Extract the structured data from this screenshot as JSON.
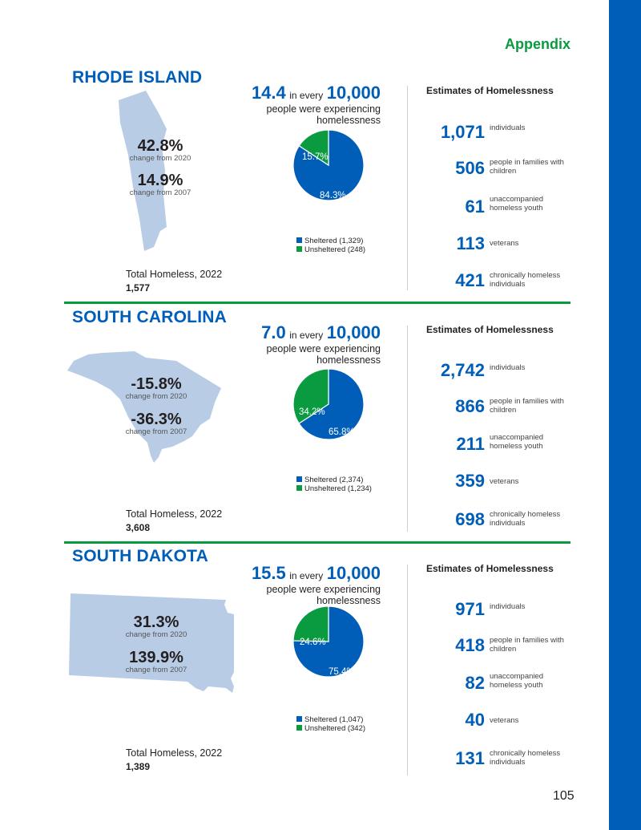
{
  "header": {
    "section_label": "Appendix"
  },
  "page_number": "105",
  "colors": {
    "brand_blue": "#005eb8",
    "brand_green": "#0a9a3f",
    "map_fill": "#b9cce6",
    "sheltered": "#005eb8",
    "unsheltered": "#0a9a3f"
  },
  "states": [
    {
      "name": "RHODE ISLAND",
      "rate": {
        "value": "14.4",
        "in_every": "in every",
        "per": "10,000",
        "line1": "people were experiencing",
        "line2": "homelessness"
      },
      "change_2020": {
        "value": "42.8%",
        "label": "change from 2020"
      },
      "change_2007": {
        "value": "14.9%",
        "label": "change from 2007"
      },
      "total": {
        "label": "Total Homeless, 2022",
        "value": "1,577"
      },
      "chart_data": {
        "type": "pie",
        "title": "",
        "slices": [
          {
            "name": "Sheltered",
            "value": 1329,
            "percent": 84.3,
            "label": "84.3%",
            "legend": "Sheltered (1,329)"
          },
          {
            "name": "Unsheltered",
            "value": 248,
            "percent": 15.7,
            "label": "15.7%",
            "legend": "Unsheltered (248)"
          }
        ]
      },
      "estimates": {
        "title": "Estimates of Homelessness",
        "rows": [
          {
            "value": "1,071",
            "label": "individuals"
          },
          {
            "value": "506",
            "label": "people in families with children"
          },
          {
            "value": "61",
            "label": "unaccompanied homeless youth"
          },
          {
            "value": "113",
            "label": "veterans"
          },
          {
            "value": "421",
            "label": "chronically homeless individuals"
          }
        ]
      }
    },
    {
      "name": "SOUTH CAROLINA",
      "rate": {
        "value": "7.0",
        "in_every": "in every",
        "per": "10,000",
        "line1": "people were experiencing",
        "line2": "homelessness"
      },
      "change_2020": {
        "value": "-15.8%",
        "label": "change from 2020"
      },
      "change_2007": {
        "value": "-36.3%",
        "label": "change from 2007"
      },
      "total": {
        "label": "Total Homeless, 2022",
        "value": "3,608"
      },
      "chart_data": {
        "type": "pie",
        "title": "",
        "slices": [
          {
            "name": "Sheltered",
            "value": 2374,
            "percent": 65.8,
            "label": "65.8%",
            "legend": "Sheltered (2,374)"
          },
          {
            "name": "Unsheltered",
            "value": 1234,
            "percent": 34.2,
            "label": "34.2%",
            "legend": "Unsheltered (1,234)"
          }
        ]
      },
      "estimates": {
        "title": "Estimates of Homelessness",
        "rows": [
          {
            "value": "2,742",
            "label": "individuals"
          },
          {
            "value": "866",
            "label": "people in families with children"
          },
          {
            "value": "211",
            "label": "unaccompanied homeless youth"
          },
          {
            "value": "359",
            "label": "veterans"
          },
          {
            "value": "698",
            "label": "chronically homeless individuals"
          }
        ]
      }
    },
    {
      "name": "SOUTH DAKOTA",
      "rate": {
        "value": "15.5",
        "in_every": "in every",
        "per": "10,000",
        "line1": "people were experiencing",
        "line2": "homelessness"
      },
      "change_2020": {
        "value": "31.3%",
        "label": "change from 2020"
      },
      "change_2007": {
        "value": "139.9%",
        "label": "change from 2007"
      },
      "total": {
        "label": "Total Homeless, 2022",
        "value": "1,389"
      },
      "chart_data": {
        "type": "pie",
        "title": "",
        "slices": [
          {
            "name": "Sheltered",
            "value": 1047,
            "percent": 75.4,
            "label": "75.4%",
            "legend": "Sheltered (1,047)"
          },
          {
            "name": "Unsheltered",
            "value": 342,
            "percent": 24.6,
            "label": "24.6%",
            "legend": "Unsheltered (342)"
          }
        ]
      },
      "estimates": {
        "title": "Estimates of Homelessness",
        "rows": [
          {
            "value": "971",
            "label": "individuals"
          },
          {
            "value": "418",
            "label": "people in families with children"
          },
          {
            "value": "82",
            "label": "unaccompanied homeless youth"
          },
          {
            "value": "40",
            "label": "veterans"
          },
          {
            "value": "131",
            "label": "chronically homeless individuals"
          }
        ]
      }
    }
  ]
}
